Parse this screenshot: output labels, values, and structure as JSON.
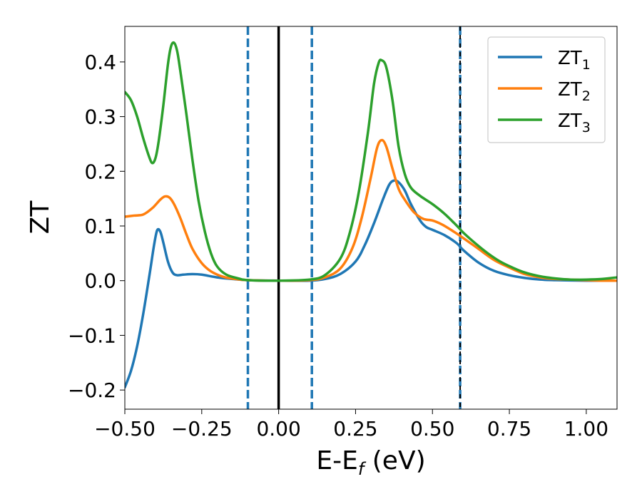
{
  "chart_data": {
    "type": "line",
    "xlabel_main": "E-E",
    "xlabel_sub": "f",
    "xlabel_unit": " (eV)",
    "ylabel": "ZT",
    "xlim": [
      -0.5,
      1.1
    ],
    "ylim": [
      -0.235,
      0.465
    ],
    "grid": false,
    "legend_position": "top-right",
    "x_ticks": [
      -0.5,
      -0.25,
      0.0,
      0.25,
      0.5,
      0.75,
      1.0
    ],
    "x_tick_labels": [
      "−0.50",
      "−0.25",
      "0.00",
      "0.25",
      "0.50",
      "0.75",
      "1.00"
    ],
    "y_ticks": [
      -0.2,
      -0.1,
      0.0,
      0.1,
      0.2,
      0.3,
      0.4
    ],
    "y_tick_labels": [
      "−0.2",
      "−0.1",
      "0.0",
      "0.1",
      "0.2",
      "0.3",
      "0.4"
    ],
    "vlines": [
      {
        "x": 0.0,
        "style": "solid",
        "color": "#000000"
      },
      {
        "x": -0.1,
        "style": "dashed",
        "color": "#1f77b4"
      },
      {
        "x": 0.108,
        "style": "dashed",
        "color": "#1f77b4"
      },
      {
        "x": 0.59,
        "style": "dashed",
        "color": "#1f77b4"
      },
      {
        "x": 0.59,
        "style": "dashed-black",
        "color": "#000000"
      }
    ],
    "series": [
      {
        "name": "ZT",
        "sub": "1",
        "color": "#1f77b4",
        "points": [
          [
            -0.5,
            -0.195
          ],
          [
            -0.48,
            -0.165
          ],
          [
            -0.46,
            -0.12
          ],
          [
            -0.44,
            -0.06
          ],
          [
            -0.42,
            0.01
          ],
          [
            -0.405,
            0.065
          ],
          [
            -0.395,
            0.092
          ],
          [
            -0.385,
            0.09
          ],
          [
            -0.375,
            0.07
          ],
          [
            -0.36,
            0.035
          ],
          [
            -0.345,
            0.015
          ],
          [
            -0.33,
            0.01
          ],
          [
            -0.31,
            0.011
          ],
          [
            -0.28,
            0.012
          ],
          [
            -0.25,
            0.011
          ],
          [
            -0.2,
            0.006
          ],
          [
            -0.15,
            0.003
          ],
          [
            -0.1,
            0.001
          ],
          [
            0.0,
            0.0
          ],
          [
            0.1,
            0.0
          ],
          [
            0.15,
            0.003
          ],
          [
            0.2,
            0.012
          ],
          [
            0.25,
            0.035
          ],
          [
            0.28,
            0.065
          ],
          [
            0.31,
            0.105
          ],
          [
            0.34,
            0.15
          ],
          [
            0.36,
            0.176
          ],
          [
            0.375,
            0.183
          ],
          [
            0.39,
            0.18
          ],
          [
            0.41,
            0.165
          ],
          [
            0.43,
            0.14
          ],
          [
            0.46,
            0.11
          ],
          [
            0.48,
            0.098
          ],
          [
            0.5,
            0.093
          ],
          [
            0.54,
            0.083
          ],
          [
            0.58,
            0.068
          ],
          [
            0.6,
            0.056
          ],
          [
            0.65,
            0.033
          ],
          [
            0.7,
            0.018
          ],
          [
            0.75,
            0.01
          ],
          [
            0.8,
            0.005
          ],
          [
            0.85,
            0.002
          ],
          [
            0.9,
            0.001
          ],
          [
            1.0,
            0.0
          ],
          [
            1.05,
            0.0
          ],
          [
            1.1,
            0.0
          ]
        ]
      },
      {
        "name": "ZT",
        "sub": "2",
        "color": "#ff7f0e",
        "points": [
          [
            -0.5,
            0.117
          ],
          [
            -0.47,
            0.119
          ],
          [
            -0.44,
            0.121
          ],
          [
            -0.41,
            0.133
          ],
          [
            -0.385,
            0.148
          ],
          [
            -0.37,
            0.154
          ],
          [
            -0.355,
            0.152
          ],
          [
            -0.34,
            0.14
          ],
          [
            -0.32,
            0.115
          ],
          [
            -0.3,
            0.085
          ],
          [
            -0.28,
            0.058
          ],
          [
            -0.25,
            0.032
          ],
          [
            -0.22,
            0.017
          ],
          [
            -0.18,
            0.007
          ],
          [
            -0.14,
            0.003
          ],
          [
            -0.1,
            0.001
          ],
          [
            0.0,
            0.0
          ],
          [
            0.1,
            0.001
          ],
          [
            0.15,
            0.006
          ],
          [
            0.2,
            0.022
          ],
          [
            0.24,
            0.06
          ],
          [
            0.27,
            0.115
          ],
          [
            0.3,
            0.19
          ],
          [
            0.32,
            0.243
          ],
          [
            0.335,
            0.257
          ],
          [
            0.35,
            0.245
          ],
          [
            0.37,
            0.205
          ],
          [
            0.39,
            0.168
          ],
          [
            0.41,
            0.148
          ],
          [
            0.44,
            0.125
          ],
          [
            0.47,
            0.113
          ],
          [
            0.5,
            0.11
          ],
          [
            0.53,
            0.103
          ],
          [
            0.56,
            0.093
          ],
          [
            0.6,
            0.078
          ],
          [
            0.65,
            0.058
          ],
          [
            0.7,
            0.038
          ],
          [
            0.75,
            0.024
          ],
          [
            0.8,
            0.012
          ],
          [
            0.85,
            0.006
          ],
          [
            0.9,
            0.003
          ],
          [
            1.0,
            0.001
          ],
          [
            1.05,
            0.0
          ],
          [
            1.1,
            0.0
          ]
        ]
      },
      {
        "name": "ZT",
        "sub": "3",
        "color": "#2ca02c",
        "points": [
          [
            -0.5,
            0.345
          ],
          [
            -0.48,
            0.33
          ],
          [
            -0.46,
            0.3
          ],
          [
            -0.44,
            0.26
          ],
          [
            -0.42,
            0.225
          ],
          [
            -0.41,
            0.215
          ],
          [
            -0.4,
            0.225
          ],
          [
            -0.39,
            0.255
          ],
          [
            -0.375,
            0.32
          ],
          [
            -0.36,
            0.395
          ],
          [
            -0.35,
            0.428
          ],
          [
            -0.34,
            0.435
          ],
          [
            -0.33,
            0.42
          ],
          [
            -0.32,
            0.385
          ],
          [
            -0.3,
            0.305
          ],
          [
            -0.28,
            0.22
          ],
          [
            -0.26,
            0.145
          ],
          [
            -0.24,
            0.09
          ],
          [
            -0.22,
            0.05
          ],
          [
            -0.2,
            0.026
          ],
          [
            -0.17,
            0.011
          ],
          [
            -0.13,
            0.004
          ],
          [
            -0.1,
            0.001
          ],
          [
            0.0,
            0.0
          ],
          [
            0.1,
            0.002
          ],
          [
            0.15,
            0.01
          ],
          [
            0.2,
            0.04
          ],
          [
            0.23,
            0.085
          ],
          [
            0.26,
            0.16
          ],
          [
            0.29,
            0.27
          ],
          [
            0.31,
            0.36
          ],
          [
            0.325,
            0.398
          ],
          [
            0.335,
            0.403
          ],
          [
            0.35,
            0.39
          ],
          [
            0.37,
            0.33
          ],
          [
            0.39,
            0.245
          ],
          [
            0.41,
            0.195
          ],
          [
            0.43,
            0.17
          ],
          [
            0.46,
            0.155
          ],
          [
            0.5,
            0.14
          ],
          [
            0.54,
            0.122
          ],
          [
            0.58,
            0.1
          ],
          [
            0.6,
            0.088
          ],
          [
            0.64,
            0.068
          ],
          [
            0.68,
            0.05
          ],
          [
            0.72,
            0.035
          ],
          [
            0.76,
            0.024
          ],
          [
            0.8,
            0.015
          ],
          [
            0.85,
            0.008
          ],
          [
            0.9,
            0.004
          ],
          [
            0.95,
            0.002
          ],
          [
            1.0,
            0.002
          ],
          [
            1.05,
            0.003
          ],
          [
            1.1,
            0.006
          ]
        ]
      }
    ]
  }
}
